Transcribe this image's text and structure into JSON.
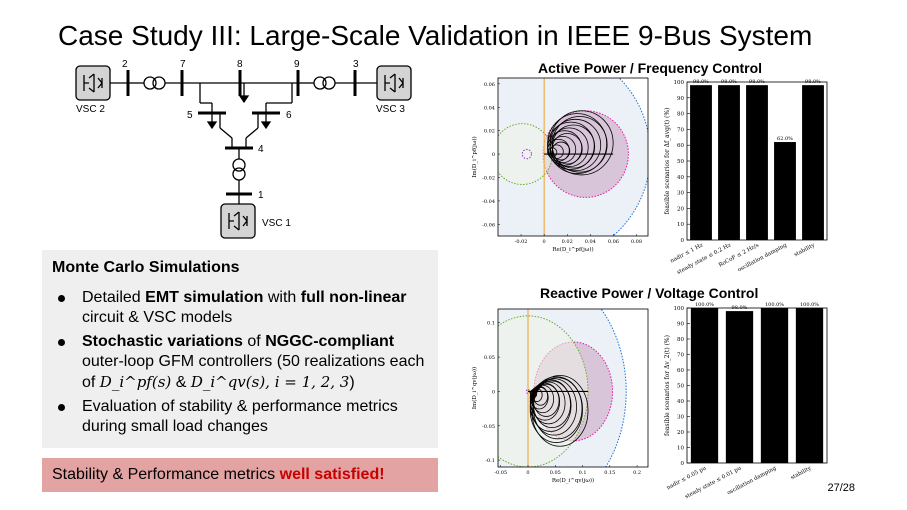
{
  "slide": {
    "title": "Case Study III: Large-Scale Validation in IEEE 9-Bus System",
    "page_number": "27/28"
  },
  "diagram": {
    "bus_labels": [
      "2",
      "7",
      "8",
      "9",
      "3",
      "5",
      "6",
      "4",
      "1"
    ],
    "vsc_labels": [
      "VSC 2",
      "VSC 3",
      "VSC 1"
    ]
  },
  "monte_carlo": {
    "heading": "Monte Carlo Simulations",
    "bullets": [
      {
        "parts": [
          {
            "text": "Detailed ",
            "bold": false
          },
          {
            "text": "EMT simulation",
            "bold": true
          },
          {
            "text": " with ",
            "bold": false
          },
          {
            "text": "full non-linear",
            "bold": true
          },
          {
            "text": " circuit & VSC models",
            "bold": false
          }
        ]
      },
      {
        "parts": [
          {
            "text": "Stochastic variations",
            "bold": true
          },
          {
            "text": " of ",
            "bold": false
          },
          {
            "text": "NGGC-compliant",
            "bold": true
          },
          {
            "text": " outer-loop GFM controllers (50 realizations each of ",
            "bold": false
          },
          {
            "text": "D_i^pf(s)",
            "math": true
          },
          {
            "text": " & ",
            "bold": false
          },
          {
            "text": "D_i^qv(s), i = 1, 2, 3",
            "math": true
          },
          {
            "text": ")",
            "bold": false
          }
        ]
      },
      {
        "parts": [
          {
            "text": "Evaluation of stability & performance metrics during small load changes",
            "bold": false
          }
        ]
      }
    ]
  },
  "result": {
    "prefix": "Stability & Performance metrics ",
    "highlight": "well satisfied!"
  },
  "charts": {
    "active_title": "Active Power / Frequency Control",
    "reactive_title": "Reactive Power / Voltage Control"
  },
  "chart_data": [
    {
      "type": "bar",
      "title": "Active Power / Frequency Control",
      "ylabel": "feasible scenarios for Δf_avg(t) (%)",
      "categories": [
        "nadir ≤ 1 Hz",
        "steady state ≤ 0.2 Hz",
        "RoCoF ≤ 2 Hz/s",
        "oscillation damping",
        "stability"
      ],
      "values": [
        98.0,
        98.0,
        98.0,
        62.0,
        98.0
      ],
      "data_labels": [
        "98.0%",
        "98.0%",
        "98.0%",
        "62.0%",
        "98.0%"
      ],
      "ylim": [
        0,
        100
      ],
      "yticks": [
        0,
        10,
        20,
        30,
        40,
        50,
        60,
        70,
        80,
        90,
        100
      ]
    },
    {
      "type": "bar",
      "title": "Reactive Power / Voltage Control",
      "ylabel": "feasible scenarios for Δv_2(t) (%)",
      "categories": [
        "nadir ≤ 0.05 pu",
        "steady state ≤ 0.01 pu",
        "oscillation damping",
        "stability"
      ],
      "values": [
        100.0,
        98.0,
        100.0,
        100.0
      ],
      "data_labels": [
        "100.0%",
        "98.0%",
        "100.0%",
        "100.0%"
      ],
      "ylim": [
        0,
        100
      ],
      "yticks": [
        0,
        10,
        20,
        30,
        40,
        50,
        60,
        70,
        80,
        90,
        100
      ]
    },
    {
      "type": "scatter",
      "title": "",
      "xlabel": "Re(D_i^pf(jω))",
      "ylabel": "Im(D_i^pf(jω))",
      "xlim": [
        -0.04,
        0.09
      ],
      "ylim": [
        -0.07,
        0.065
      ],
      "xticks": [
        -0.02,
        0,
        0.02,
        0.04,
        0.06,
        0.08
      ],
      "xtick_labels": [
        "-0.02",
        "0",
        "0.02",
        "0.04",
        "0.06",
        "0.08"
      ],
      "yticks": [
        -0.06,
        -0.04,
        -0.02,
        0,
        0.02,
        0.04,
        0.06
      ],
      "ytick_labels": [
        "-0.06",
        "-0.04",
        "-0.02",
        "0",
        "0.02",
        "0.04",
        "0.06"
      ],
      "regions": [
        {
          "shape": "circle",
          "cx": 0.0,
          "cy": 0.0,
          "r": 0.092,
          "color": "#1f6fd6",
          "fill": "#dce6f2"
        },
        {
          "shape": "circle",
          "cx": 0.036,
          "cy": 0.0,
          "r": 0.037,
          "color": "#e8199b",
          "fill": "#c8a0c0"
        },
        {
          "shape": "circle",
          "cx": -0.019,
          "cy": 0.0,
          "r": 0.026,
          "color": "#6aaa1e",
          "fill": "#eef3e6"
        },
        {
          "shape": "circle",
          "cx": -0.015,
          "cy": 0.0,
          "r": 0.004,
          "color": "#9b30c8",
          "fill": "none"
        }
      ],
      "series_color": "#000000"
    },
    {
      "type": "scatter",
      "title": "",
      "xlabel": "Re(D_i^qv(jω))",
      "ylabel": "Im(D_i^qv(jω))",
      "xlim": [
        -0.055,
        0.22
      ],
      "ylim": [
        -0.11,
        0.12
      ],
      "xticks": [
        -0.05,
        0,
        0.05,
        0.1,
        0.15,
        0.2
      ],
      "xtick_labels": [
        "-0.05",
        "0",
        "0.05",
        "0.1",
        "0.15",
        "0.2"
      ],
      "yticks": [
        -0.1,
        -0.05,
        0,
        0.05,
        0.1
      ],
      "ytick_labels": [
        "-0.1",
        "-0.05",
        "0",
        "0.05",
        "0.1"
      ],
      "regions": [
        {
          "shape": "circle",
          "cx": 0.0,
          "cy": 0.0,
          "r": 0.18,
          "color": "#1f6fd6",
          "fill": "#dce6f2"
        },
        {
          "shape": "circle",
          "cx": 0.083,
          "cy": 0.0,
          "r": 0.072,
          "color": "#e8199b",
          "fill": "#c8a0c0"
        },
        {
          "shape": "circle",
          "cx": 0.0,
          "cy": 0.0,
          "r": 0.11,
          "color": "#6aaa1e",
          "fill": "#eef3e6"
        },
        {
          "shape": "circle",
          "cx": 0.0,
          "cy": 0.0,
          "r": 0.003,
          "color": "#9b30c8",
          "fill": "none"
        }
      ],
      "series_color": "#000000"
    }
  ]
}
